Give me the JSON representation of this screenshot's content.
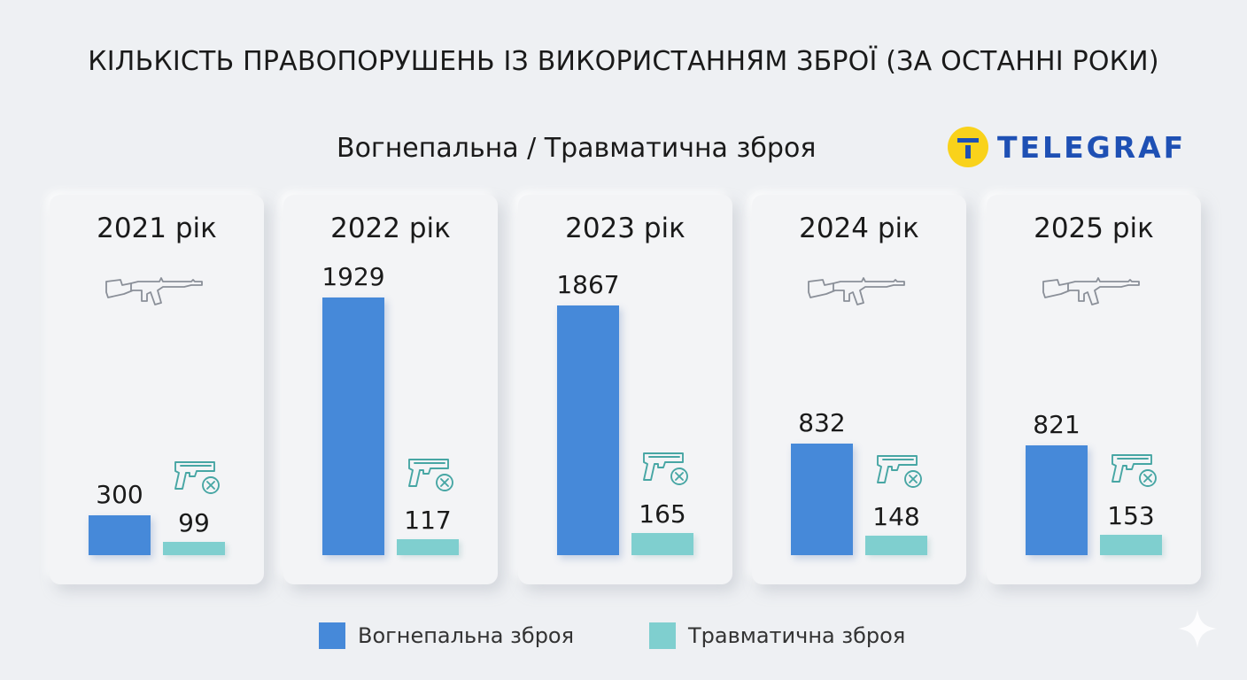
{
  "header": {
    "title": "КІЛЬКІСТЬ ПРАВОПОРУШЕНЬ ІЗ ВИКОРИСТАННЯМ ЗБРОЇ (ЗА ОСТАННІ РОКИ)",
    "subtitle": "Вогнепальна / Травматична зброя"
  },
  "logo": {
    "text": "TELEGRAF",
    "accent": "#f9d21b",
    "brand": "#1e50b4"
  },
  "colors": {
    "firearm": "#4689d9",
    "traumatic": "#7fcfcf"
  },
  "chart_data": {
    "type": "bar",
    "title": "КІЛЬКІСТЬ ПРАВОПОРУШЕНЬ ІЗ ВИКОРИСТАННЯМ ЗБРОЇ (ЗА ОСТАННІ РОКИ)",
    "subtitle": "Вогнепальна / Травматична зброя",
    "categories": [
      "2021 рік",
      "2022 рік",
      "2023 рік",
      "2024 рік",
      "2025 рік"
    ],
    "series": [
      {
        "name": "Вогнепальна зброя",
        "values": [
          300,
          1929,
          1867,
          832,
          821
        ],
        "icon": "rifle-icon"
      },
      {
        "name": "Травматична зброя",
        "values": [
          99,
          117,
          165,
          148,
          153
        ],
        "icon": "pistol-icon"
      }
    ],
    "ylim": [
      0,
      2000
    ],
    "grid": false,
    "legend": "bottom-center"
  }
}
